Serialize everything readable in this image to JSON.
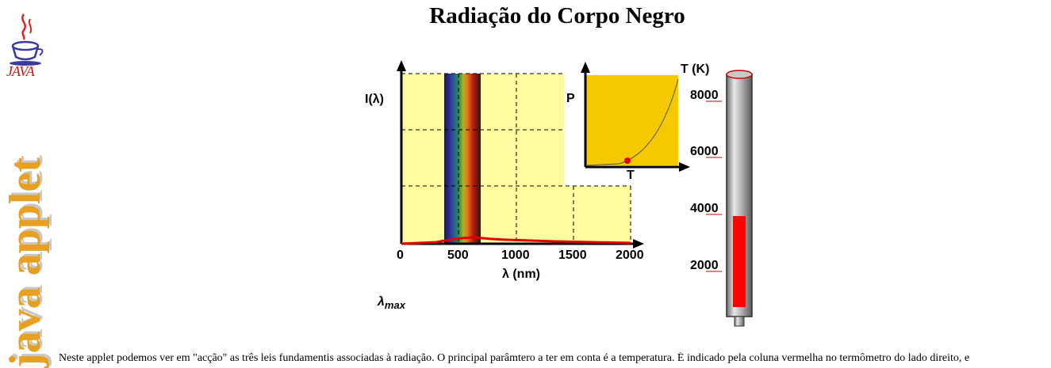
{
  "page": {
    "title": "Radiação do Corpo Negro",
    "side_label": "java applet",
    "logo_text": "JAVA",
    "description": "Neste applet podemos ver em \"acção\" as três leis fundamentis associadas à radiação. O principal parâmtero a ter em conta é a temperatura. É indicado pela coluna vermelha no termômetro do lado direito, e"
  },
  "spectrum_plot": {
    "y_label": "I(λ)",
    "x_label": "λ (nm)",
    "x_ticks": [
      "0",
      "500",
      "1000",
      "1500",
      "2000"
    ],
    "lambda_max_label": "λ",
    "lambda_max_sub": "max"
  },
  "power_plot": {
    "y_label": "P",
    "x_label": "T"
  },
  "thermometer": {
    "title": "T (K)",
    "ticks": [
      "8000",
      "6000",
      "4000",
      "2000"
    ],
    "level_fraction": 0.38
  },
  "colors": {
    "plot_bg": "#fffca0",
    "inset_bg": "#f5c800",
    "curve": "#e00000",
    "mercury": "#ff0000",
    "side_text": "#e8a020"
  }
}
